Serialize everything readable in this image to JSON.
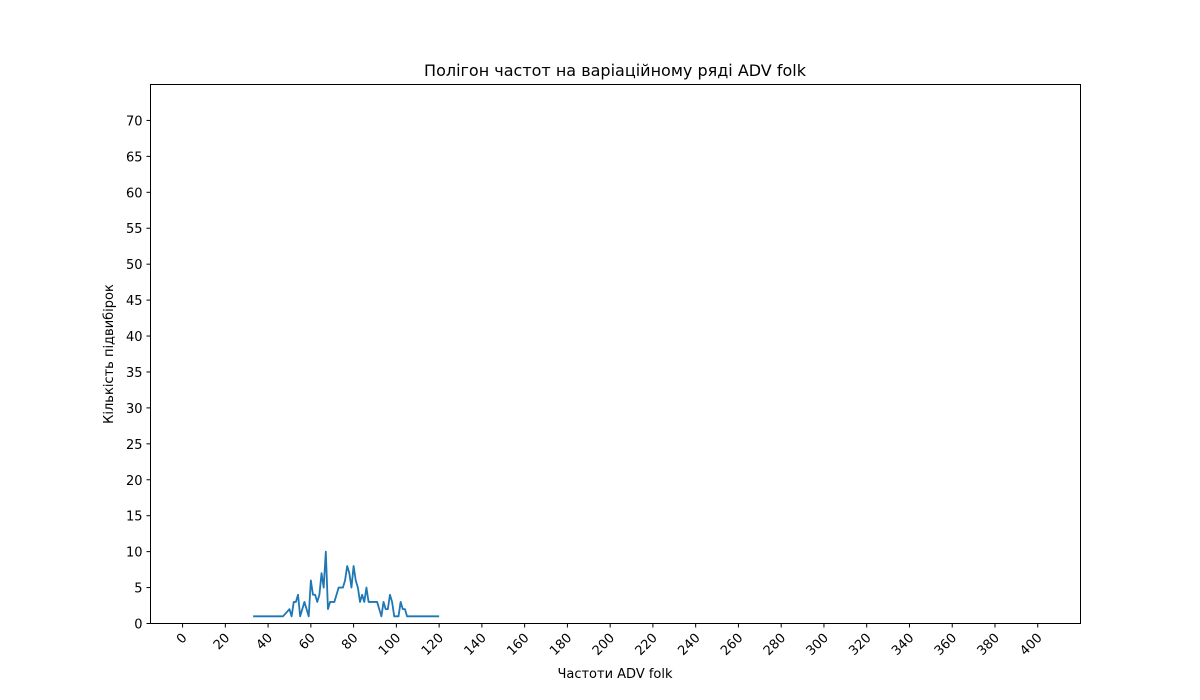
{
  "chart_data": {
    "type": "line",
    "title": "Полігон частот на варіаційному ряді ADV folk",
    "xlabel": "Частоти ADV folk",
    "ylabel": "Кількість підвибірок",
    "xlim": [
      -15,
      420
    ],
    "ylim": [
      0,
      75
    ],
    "xticks": [
      0,
      20,
      40,
      60,
      80,
      100,
      120,
      140,
      160,
      180,
      200,
      220,
      240,
      260,
      280,
      300,
      320,
      340,
      360,
      380,
      400
    ],
    "yticks": [
      0,
      5,
      10,
      15,
      20,
      25,
      30,
      35,
      40,
      45,
      50,
      55,
      60,
      65,
      70
    ],
    "xtick_rotation": 45,
    "grid": false,
    "series": [
      {
        "color": "#1f77b4",
        "x": [
          33,
          47,
          50,
          51,
          52,
          53,
          54,
          55,
          56,
          57,
          58,
          59,
          60,
          61,
          62,
          63,
          64,
          65,
          66,
          67,
          68,
          69,
          70,
          71,
          72,
          73,
          74,
          75,
          76,
          77,
          78,
          79,
          80,
          81,
          82,
          83,
          84,
          85,
          86,
          87,
          88,
          89,
          90,
          91,
          92,
          93,
          94,
          95,
          96,
          97,
          98,
          99,
          100,
          101,
          102,
          103,
          104,
          105,
          120
        ],
        "y": [
          1,
          1,
          2,
          1,
          3,
          3,
          4,
          1,
          2,
          3,
          2,
          1,
          6,
          4,
          4,
          3,
          4,
          7,
          5,
          10,
          2,
          3,
          3,
          3,
          4,
          5,
          5,
          5,
          6,
          8,
          7,
          5,
          8,
          6,
          5,
          3,
          4,
          3,
          5,
          3,
          3,
          3,
          3,
          3,
          2,
          1,
          3,
          2,
          2,
          4,
          3,
          1,
          1,
          1,
          3,
          2,
          2,
          1,
          1
        ]
      }
    ]
  }
}
